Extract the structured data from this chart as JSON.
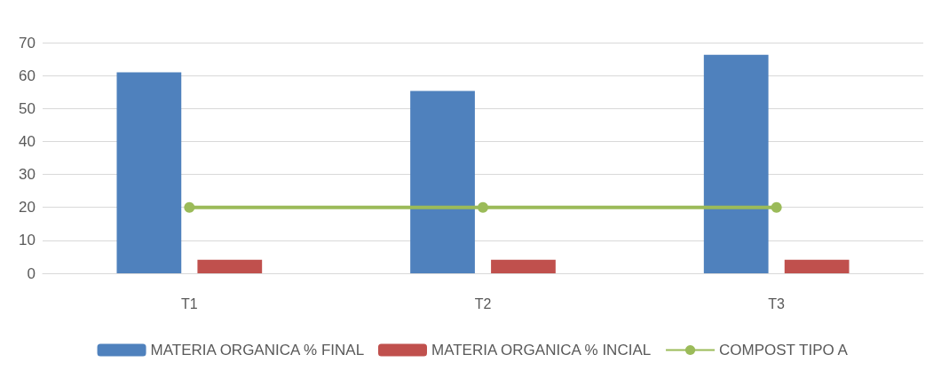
{
  "chart_data": {
    "type": "bar",
    "categories": [
      "T1",
      "T2",
      "T3"
    ],
    "series": [
      {
        "name": "MATERIA ORGANICA % FINAL",
        "color": "#4f81bd",
        "values": [
          61,
          55.3,
          66.3
        ]
      },
      {
        "name": "MATERIA ORGANICA % INCIAL",
        "color": "#c0504d",
        "values": [
          4.1,
          4.1,
          4.1
        ]
      },
      {
        "name": "COMPOST TIPO A",
        "color": "#9bbb59",
        "type": "line",
        "values": [
          20,
          20,
          20
        ]
      }
    ],
    "ylim": [
      0,
      70
    ],
    "yticks": [
      0,
      10,
      20,
      30,
      40,
      50,
      60,
      70
    ],
    "grid": "y",
    "legend": "bottom",
    "marker": "circle",
    "line_style": "solid"
  }
}
